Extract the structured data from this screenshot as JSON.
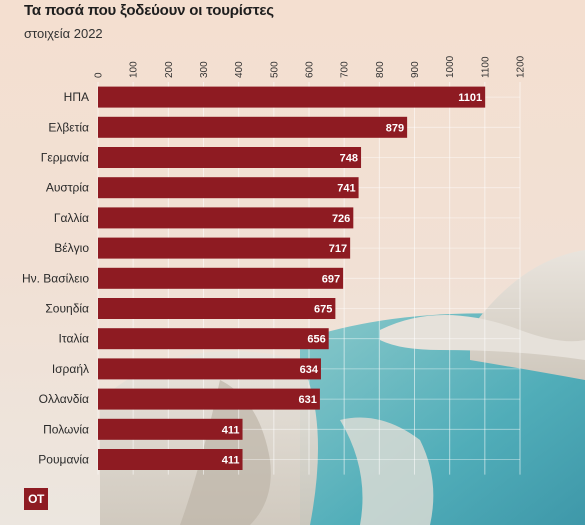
{
  "header": {
    "title": "Τα ποσά που ξοδεύουν οι τουρίστες",
    "subtitle": "στοιχεία 2022"
  },
  "logo": {
    "text": "ΟΤ"
  },
  "colors": {
    "bar": "#8e1b22",
    "background": "#f4dfd0",
    "gridline": "#ffffff"
  },
  "chart_data": {
    "type": "bar",
    "orientation": "horizontal",
    "title": "Τα ποσά που ξοδεύουν οι τουρίστες",
    "subtitle": "στοιχεία 2022",
    "categories": [
      "ΗΠΑ",
      "Ελβετία",
      "Γερμανία",
      "Αυστρία",
      "Γαλλία",
      "Βέλγιο",
      "Ην. Βασίλειο",
      "Σουηδία",
      "Ιταλία",
      "Ισραήλ",
      "Ολλανδία",
      "Πολωνία",
      "Ρουμανία"
    ],
    "values": [
      1101,
      879,
      748,
      741,
      726,
      717,
      697,
      675,
      656,
      634,
      631,
      411,
      411
    ],
    "xlim": [
      0,
      1200
    ],
    "ticks": [
      0,
      100,
      200,
      300,
      400,
      500,
      600,
      700,
      800,
      900,
      1000,
      1100,
      1200
    ],
    "tick_labels": [
      "0",
      "100",
      "200",
      "300",
      "400",
      "500",
      "600",
      "700",
      "800",
      "900",
      "1000",
      "1100",
      "1200"
    ],
    "axis_position": "top",
    "grid": true,
    "data_labels": true
  }
}
